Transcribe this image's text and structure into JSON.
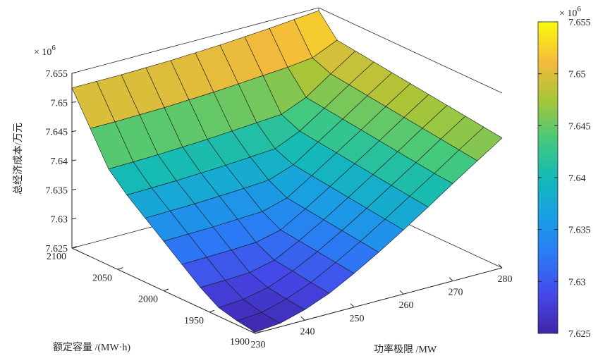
{
  "chart_data": {
    "type": "surface",
    "title": "",
    "zlabel": "总经济成本/万元",
    "xlabel": "功率极限 /MW",
    "ylabel": "额定容量  /(MW·h)",
    "exponent_label": "× 10",
    "exponent_power": "6",
    "x_ticks": [
      "230",
      "240",
      "250",
      "260",
      "270",
      "280"
    ],
    "y_ticks": [
      "1900",
      "1950",
      "2000",
      "2050",
      "2100"
    ],
    "z_ticks": [
      "7.625",
      "7.63",
      "7.635",
      "7.64",
      "7.645",
      "7.65",
      "7.655"
    ],
    "xlim": [
      230,
      280
    ],
    "ylim": [
      1900,
      2100
    ],
    "zlim": [
      7.625,
      7.655
    ],
    "zscale": 1000000,
    "x": [
      230,
      235,
      240,
      245,
      250,
      255,
      260,
      265,
      270,
      275,
      280
    ],
    "y": [
      1900,
      1920,
      1940,
      1960,
      1980,
      2000,
      2020,
      2040,
      2060,
      2080,
      2100
    ],
    "z_model": {
      "description_of_values": "z[j][i] in units of 10^6; rows indexed by y (1900..2100), columns by x (230..280)",
      "values": [
        [
          7.6252,
          7.6256,
          7.6268,
          7.6285,
          7.6308,
          7.6333,
          7.636,
          7.6388,
          7.6417,
          7.6445,
          7.6473
        ],
        [
          7.6257,
          7.626,
          7.6272,
          7.6289,
          7.6312,
          7.6337,
          7.6364,
          7.6392,
          7.642,
          7.6449,
          7.6477
        ],
        [
          7.6265,
          7.6268,
          7.6277,
          7.6294,
          7.6316,
          7.6341,
          7.6368,
          7.6396,
          7.6424,
          7.6453,
          7.6481
        ],
        [
          7.6285,
          7.6286,
          7.6288,
          7.6298,
          7.632,
          7.6345,
          7.6372,
          7.64,
          7.6428,
          7.6457,
          7.6485
        ],
        [
          7.631,
          7.6311,
          7.6312,
          7.6314,
          7.6324,
          7.6349,
          7.6376,
          7.6404,
          7.6432,
          7.6461,
          7.6489
        ],
        [
          7.6335,
          7.6336,
          7.6337,
          7.6339,
          7.6341,
          7.6353,
          7.638,
          7.6408,
          7.6436,
          7.6465,
          7.6493
        ],
        [
          7.636,
          7.6361,
          7.6362,
          7.6364,
          7.6366,
          7.6369,
          7.6384,
          7.6412,
          7.644,
          7.6469,
          7.6497
        ],
        [
          7.6385,
          7.6386,
          7.6387,
          7.6389,
          7.6391,
          7.6394,
          7.6397,
          7.6416,
          7.6444,
          7.6473,
          7.6501
        ],
        [
          7.6415,
          7.6416,
          7.6417,
          7.6419,
          7.6421,
          7.6424,
          7.6427,
          7.643,
          7.6448,
          7.6477,
          7.6505
        ],
        [
          7.647,
          7.647,
          7.6471,
          7.6472,
          7.6474,
          7.6476,
          7.6479,
          7.6482,
          7.6485,
          7.649,
          7.6509
        ],
        [
          7.6525,
          7.6525,
          7.6525,
          7.6526,
          7.6527,
          7.6529,
          7.6531,
          7.6534,
          7.6537,
          7.6541,
          7.6545
        ]
      ]
    },
    "colormap": "parula",
    "colorbar": {
      "ticks": [
        "7.625",
        "7.63",
        "7.635",
        "7.64",
        "7.645",
        "7.65",
        "7.655"
      ],
      "exponent_label": "× 10",
      "exponent_power": "6"
    },
    "grid": false,
    "box": true
  }
}
